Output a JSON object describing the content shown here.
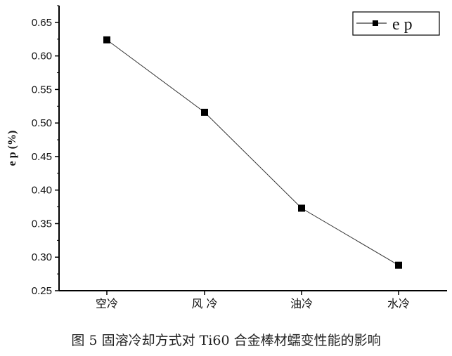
{
  "chart_data": {
    "type": "line",
    "categories": [
      "空冷",
      "风 冷",
      "油冷",
      "水冷"
    ],
    "series": [
      {
        "name": "e p",
        "values": [
          0.624,
          0.516,
          0.373,
          0.288
        ],
        "marker": "square",
        "color": "#000000"
      }
    ],
    "ylabel": "e p (%)",
    "xlabel": "",
    "ylim": [
      0.25,
      0.675
    ],
    "yticks": [
      "0.25",
      "0.30",
      "0.35",
      "0.40",
      "0.45",
      "0.50",
      "0.55",
      "0.60",
      "0.65"
    ],
    "grid": false,
    "legend": "top-right"
  },
  "caption": "图 5  固溶冷却方式对 Ti60 合金棒材蠕变性能的影响"
}
